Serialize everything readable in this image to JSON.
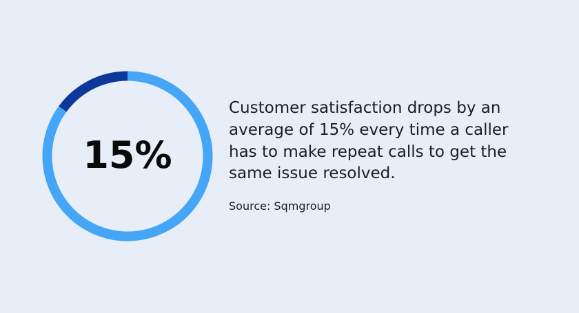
{
  "chart_data": {
    "type": "donut",
    "values": [
      15,
      85
    ],
    "value_labels": [
      "15%",
      null
    ],
    "colors": [
      "#0d379a",
      "#45a5f6"
    ],
    "caption": [
      "Customer satisfaction drops by an",
      "average of 15% every time a caller",
      "has to make repeat calls to get the",
      "same issue resolved."
    ],
    "source": "Source: Sqmgroup"
  }
}
